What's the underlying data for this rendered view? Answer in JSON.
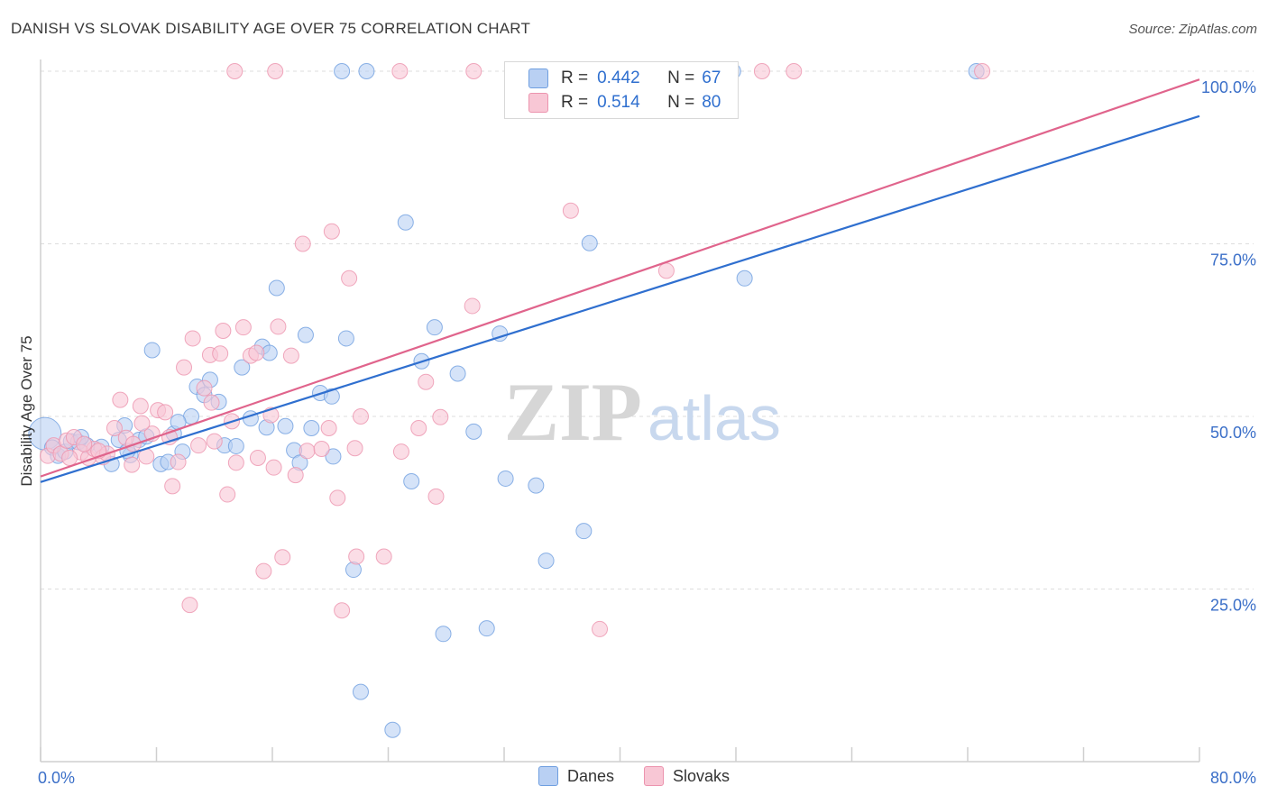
{
  "title": "DANISH VS SLOVAK DISABILITY AGE OVER 75 CORRELATION CHART",
  "source": "Source: ZipAtlas.com",
  "watermark": "ZIPatlas",
  "legend_box": {
    "danes": {
      "r_label": "R =",
      "r_value": "0.442",
      "n_label": "N =",
      "n_value": "67"
    },
    "slovaks": {
      "r_label": "R =",
      "r_value": "0.514",
      "n_label": "N =",
      "n_value": "80"
    }
  },
  "legend_bottom": {
    "danes": "Danes",
    "slovaks": "Slovaks"
  },
  "colors": {
    "danes_fill": "#b9d0f3",
    "danes_stroke": "#6f9fe0",
    "danes_line": "#2f6fcf",
    "slovaks_fill": "#f8c7d5",
    "slovaks_stroke": "#ec94ae",
    "slovaks_line": "#e0648c",
    "axis_text": "#3b6fc8",
    "grid": "#dddddd"
  },
  "chart_data": {
    "type": "scatter",
    "title": "DANISH VS SLOVAK DISABILITY AGE OVER 75 CORRELATION CHART",
    "xlabel": "",
    "ylabel": "Disability Age Over 75",
    "xlim": [
      0,
      80
    ],
    "ylim": [
      0,
      100
    ],
    "x_tick_labels": [
      "0.0%",
      "80.0%"
    ],
    "y_tick_labels": [
      "25.0%",
      "50.0%",
      "75.0%",
      "100.0%"
    ],
    "y_ticks": [
      25,
      50,
      75,
      100
    ],
    "grid": true,
    "legend": "top-center",
    "series": [
      {
        "name": "Danes",
        "r": 0.442,
        "n": 67,
        "trend": {
          "x": [
            0,
            80
          ],
          "y": [
            40.5,
            93.5
          ]
        },
        "points": [
          [
            0.3,
            47.5
          ],
          [
            0.8,
            45.5
          ],
          [
            1.2,
            44.3
          ],
          [
            1.7,
            44.9
          ],
          [
            2.1,
            46.4
          ],
          [
            2.6,
            46.3
          ],
          [
            3.2,
            45.8
          ],
          [
            4.2,
            45.6
          ],
          [
            4.9,
            43.1
          ],
          [
            5.4,
            46.6
          ],
          [
            5.8,
            48.7
          ],
          [
            6.2,
            44.4
          ],
          [
            6.8,
            46.6
          ],
          [
            7.3,
            47.1
          ],
          [
            7.7,
            59.6
          ],
          [
            8.3,
            43.1
          ],
          [
            8.8,
            43.4
          ],
          [
            9.2,
            47.5
          ],
          [
            9.8,
            44.9
          ],
          [
            10.4,
            50
          ],
          [
            10.8,
            54.3
          ],
          [
            11.3,
            53.1
          ],
          [
            11.7,
            55.3
          ],
          [
            12.3,
            52.1
          ],
          [
            12.7,
            45.8
          ],
          [
            13.5,
            45.7
          ],
          [
            13.9,
            57.1
          ],
          [
            14.5,
            49.7
          ],
          [
            15.3,
            60.1
          ],
          [
            15.6,
            48.4
          ],
          [
            15.8,
            59.2
          ],
          [
            16.3,
            68.6
          ],
          [
            16.9,
            48.6
          ],
          [
            17.5,
            45.1
          ],
          [
            17.9,
            43.3
          ],
          [
            18.3,
            61.8
          ],
          [
            18.7,
            48.3
          ],
          [
            19.3,
            53.4
          ],
          [
            20.1,
            52.9
          ],
          [
            20.2,
            44.2
          ],
          [
            21.1,
            61.3
          ],
          [
            21.6,
            27.8
          ],
          [
            22.1,
            10.1
          ],
          [
            20.8,
            100
          ],
          [
            22.5,
            100
          ],
          [
            24.3,
            4.6
          ],
          [
            25.2,
            78.1
          ],
          [
            25.6,
            40.6
          ],
          [
            26.3,
            58
          ],
          [
            27.2,
            62.9
          ],
          [
            27.8,
            18.5
          ],
          [
            28.8,
            56.2
          ],
          [
            29.9,
            47.8
          ],
          [
            30.8,
            19.3
          ],
          [
            31.7,
            62
          ],
          [
            32.1,
            41
          ],
          [
            34.2,
            40
          ],
          [
            34.9,
            29.1
          ],
          [
            37.5,
            33.4
          ],
          [
            37.9,
            75.1
          ],
          [
            40.1,
            100
          ],
          [
            47.8,
            100
          ],
          [
            48.6,
            70
          ],
          [
            64.6,
            100
          ],
          [
            2.8,
            47
          ],
          [
            9.5,
            49.2
          ],
          [
            6,
            45
          ]
        ]
      },
      {
        "name": "Slovaks",
        "r": 0.514,
        "n": 80,
        "trend": {
          "x": [
            0,
            80
          ],
          "y": [
            41.3,
            98.8
          ]
        },
        "points": [
          [
            0.5,
            44.3
          ],
          [
            0.9,
            45.8
          ],
          [
            1.4,
            44.6
          ],
          [
            1.8,
            46.5
          ],
          [
            2.3,
            47
          ],
          [
            2.8,
            44.8
          ],
          [
            3.3,
            44
          ],
          [
            3.7,
            45.3
          ],
          [
            4.3,
            44.1
          ],
          [
            4.6,
            44.6
          ],
          [
            5.1,
            48.3
          ],
          [
            5.5,
            52.4
          ],
          [
            5.9,
            46.9
          ],
          [
            6.4,
            46
          ],
          [
            6.9,
            51.5
          ],
          [
            7.3,
            44.2
          ],
          [
            7.7,
            47.5
          ],
          [
            8.1,
            50.9
          ],
          [
            8.6,
            50.6
          ],
          [
            9.1,
            39.9
          ],
          [
            9.5,
            43.4
          ],
          [
            9.9,
            57.1
          ],
          [
            10.3,
            22.7
          ],
          [
            10.5,
            61.3
          ],
          [
            10.9,
            45.8
          ],
          [
            11.3,
            54.1
          ],
          [
            11.7,
            58.9
          ],
          [
            12,
            46.4
          ],
          [
            12.4,
            59.1
          ],
          [
            12.6,
            62.4
          ],
          [
            12.9,
            38.7
          ],
          [
            13.2,
            49.3
          ],
          [
            13.5,
            43.3
          ],
          [
            14,
            62.9
          ],
          [
            14.5,
            58.8
          ],
          [
            14.9,
            59.2
          ],
          [
            15.4,
            27.6
          ],
          [
            15.9,
            50.2
          ],
          [
            16.1,
            42.6
          ],
          [
            16.4,
            63
          ],
          [
            16.7,
            29.6
          ],
          [
            17.3,
            58.8
          ],
          [
            17.6,
            41.5
          ],
          [
            18.1,
            75
          ],
          [
            18.4,
            45
          ],
          [
            19.4,
            45.3
          ],
          [
            19.9,
            48.3
          ],
          [
            20.1,
            76.8
          ],
          [
            20.5,
            38.2
          ],
          [
            20.8,
            21.9
          ],
          [
            21.3,
            70
          ],
          [
            21.8,
            29.7
          ],
          [
            21.7,
            45.4
          ],
          [
            22.1,
            50
          ],
          [
            23.7,
            29.7
          ],
          [
            24.9,
            44.9
          ],
          [
            26.1,
            48.3
          ],
          [
            26.6,
            55
          ],
          [
            27.3,
            38.4
          ],
          [
            27.6,
            49.9
          ],
          [
            29.8,
            66
          ],
          [
            33.8,
            100
          ],
          [
            36.6,
            79.8
          ],
          [
            38.6,
            19.2
          ],
          [
            43.2,
            71.1
          ],
          [
            52,
            100
          ],
          [
            65,
            100
          ],
          [
            49.8,
            100
          ],
          [
            16.2,
            100
          ],
          [
            24.8,
            100
          ],
          [
            29.9,
            100
          ],
          [
            13.4,
            100
          ],
          [
            8.9,
            47
          ],
          [
            6.3,
            43
          ],
          [
            11.8,
            52
          ],
          [
            3,
            46
          ],
          [
            7,
            49
          ],
          [
            2,
            44
          ],
          [
            4,
            45
          ],
          [
            15,
            44
          ]
        ]
      }
    ]
  }
}
